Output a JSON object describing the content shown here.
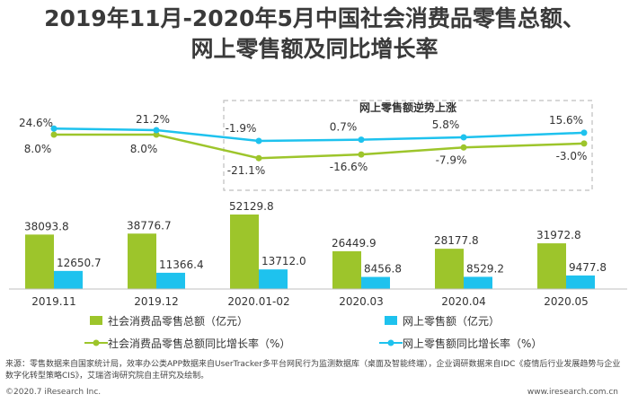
{
  "title_line1": "2019年11月-2020年5月中国社会消费品零售总额、",
  "title_line2": "网上零售额及同比增长率",
  "annotation": "网上零售额逆势上涨",
  "source": "来源：零售数据来自国家统计局，效率办公类APP数据来自UserTracker多平台网民行为监测数据库（桌面及智能终端），企业调研数据来自IDC《疫情后行业发展趋势与企业数字化转型策略CIS》，艾瑞咨询研究院自主研究及绘制。",
  "footer_left": "©2020.7 iResearch Inc.",
  "footer_right": "www.iresearch.com.cn",
  "colors": {
    "green": "#9dc52b",
    "blue": "#1ec2ee",
    "axis": "#bfbfbf",
    "dashed_box": "#bfbfbf"
  },
  "chart_data": {
    "type": "bar",
    "categories": [
      "2019.11",
      "2019.12",
      "2020.01-02",
      "2020.03",
      "2020.04",
      "2020.05"
    ],
    "series": [
      {
        "name": "社会消费品零售总额（亿元）",
        "type": "bar",
        "color": "#9dc52b",
        "values": [
          38093.8,
          38776.7,
          52129.8,
          26449.9,
          28177.8,
          31972.8
        ],
        "labels": [
          "38093.8",
          "38776.7",
          "52129.8",
          "26449.9",
          "28177.8",
          "31972.8"
        ]
      },
      {
        "name": "网上零售额（亿元）",
        "type": "bar",
        "color": "#1ec2ee",
        "values": [
          12650.7,
          11366.4,
          13712.0,
          8456.8,
          8529.2,
          9477.8
        ],
        "labels": [
          "12650.7",
          "11366.4",
          "13712.0",
          "8456.8",
          "8529.2",
          "9477.8"
        ]
      },
      {
        "name": "社会消费品零售总额同比增长率（%）",
        "type": "line",
        "color": "#9dc52b",
        "values": [
          8.0,
          8.0,
          -21.1,
          -16.6,
          -7.9,
          -3.0
        ],
        "labels": [
          "8.0%",
          "8.0%",
          "-21.1%",
          "-16.6%",
          "-7.9%",
          "-3.0%"
        ]
      },
      {
        "name": "网上零售额同比增长率（%）",
        "type": "line",
        "color": "#1ec2ee",
        "values": [
          24.6,
          21.2,
          -1.9,
          0.7,
          5.8,
          15.6
        ],
        "labels": [
          "24.6%",
          "21.2%",
          "-1.9%",
          "0.7%",
          "5.8%",
          "15.6%"
        ]
      }
    ]
  }
}
